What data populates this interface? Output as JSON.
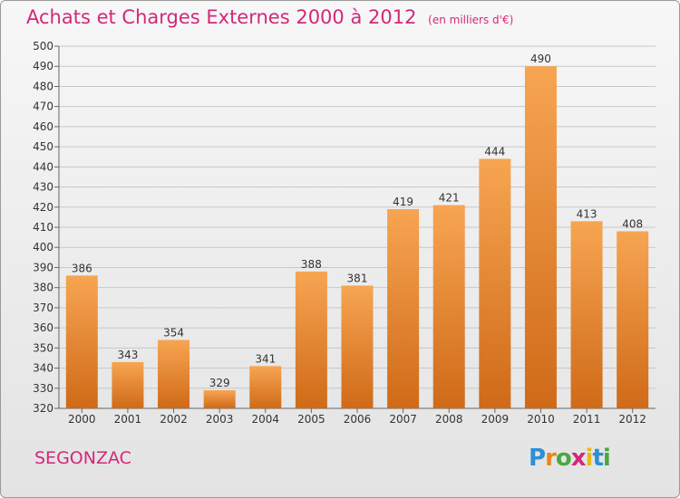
{
  "title": "Achats et Charges Externes 2000 à 2012",
  "unit_label": "(en milliers d'€)",
  "place": "SEGONZAC",
  "brand": "Proxiti",
  "colors": {
    "accent": "#d2287a",
    "bar_top": "#f7a552",
    "bar_bottom": "#cf6a18"
  },
  "chart_data": {
    "type": "bar",
    "categories": [
      "2000",
      "2001",
      "2002",
      "2003",
      "2004",
      "2005",
      "2006",
      "2007",
      "2008",
      "2009",
      "2010",
      "2011",
      "2012"
    ],
    "values": [
      386,
      343,
      354,
      329,
      341,
      388,
      381,
      419,
      421,
      444,
      490,
      413,
      408
    ],
    "ylim": [
      320,
      500
    ],
    "ytick_step": 10,
    "grid": true
  }
}
